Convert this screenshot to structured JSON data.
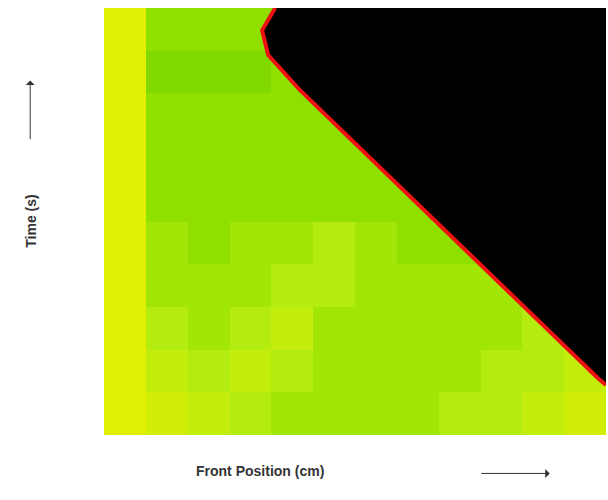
{
  "chart_data": {
    "type": "heatmap",
    "x_label": "Front Position (cm)",
    "y_label": "Time (s)",
    "xlim": [
      0,
      1
    ],
    "ylim": [
      0,
      1
    ],
    "tick_labels": false,
    "grid": false,
    "x": [
      0.0417,
      0.125,
      0.2083,
      0.2917,
      0.375,
      0.4583,
      0.5417,
      0.625,
      0.7083,
      0.7917,
      0.875,
      0.9583
    ],
    "y": [
      0.05,
      0.15,
      0.25,
      0.35,
      0.45,
      0.55,
      0.65,
      0.75,
      0.85,
      0.95
    ],
    "z": [
      [
        0.9,
        0.8,
        0.7,
        0.6,
        0.5,
        0.5,
        0.5,
        0.5,
        0.6,
        0.6,
        0.7,
        0.8
      ],
      [
        0.9,
        0.7,
        0.6,
        0.7,
        0.6,
        0.5,
        0.5,
        0.5,
        0.5,
        0.6,
        0.6,
        0.7
      ],
      [
        0.9,
        0.6,
        0.5,
        0.6,
        0.7,
        0.5,
        0.5,
        0.5,
        0.5,
        0.5,
        0.6,
        0.6
      ],
      [
        0.9,
        0.5,
        0.5,
        0.5,
        0.6,
        0.6,
        0.5,
        0.5,
        0.5,
        0.5,
        0.5,
        0.5
      ],
      [
        0.9,
        0.5,
        0.4,
        0.5,
        0.5,
        0.6,
        0.5,
        0.4,
        0.4,
        0.4,
        0.4,
        0.4
      ],
      [
        0.9,
        0.4,
        0.4,
        0.4,
        0.4,
        0.4,
        0.4,
        0.4,
        0.4,
        0.4,
        0.4,
        0.4
      ],
      [
        0.9,
        0.4,
        0.4,
        0.4,
        0.4,
        0.4,
        0.4,
        0.4,
        0.4,
        0.4,
        0.4,
        0.4
      ],
      [
        0.9,
        0.4,
        0.4,
        0.4,
        0.4,
        0.4,
        0.4,
        0.4,
        0.4,
        0.4,
        0.4,
        0.4
      ],
      [
        0.9,
        0.3,
        0.3,
        0.3,
        0.4,
        0.4,
        0.4,
        0.4,
        0.4,
        0.4,
        0.4,
        0.4
      ],
      [
        0.9,
        0.4,
        0.4,
        0.4,
        0.4,
        0.4,
        0.4,
        0.4,
        0.4,
        0.4,
        0.4,
        0.4
      ]
    ],
    "zlim": [
      0,
      1
    ],
    "front": {
      "x": [
        0.341,
        0.315,
        0.327,
        0.39,
        0.984,
        1.0
      ],
      "y": [
        1.0,
        0.948,
        0.89,
        0.808,
        0.133,
        0.117
      ],
      "color": "#ee1111"
    },
    "burned": {
      "color": "#000000"
    }
  }
}
